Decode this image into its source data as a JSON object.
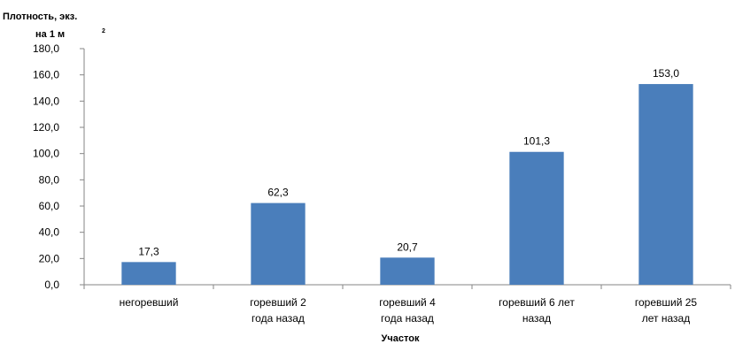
{
  "chart_data": {
    "type": "bar",
    "ylabel_line1": "Плотность, экз.",
    "ylabel_line2": "на 1 м",
    "ylabel_sup": "2",
    "xlabel": "Участок",
    "ylim": [
      0,
      180
    ],
    "yticks": [
      "0,0",
      "20,0",
      "40,0",
      "60,0",
      "80,0",
      "100,0",
      "120,0",
      "140,0",
      "160,0",
      "180,0"
    ],
    "categories": [
      [
        "негоревший"
      ],
      [
        "горевший 2",
        "года назад"
      ],
      [
        "горевший 4",
        "года назад"
      ],
      [
        "горевший 6 лет",
        "назад"
      ],
      [
        "горевший 25",
        "лет назад"
      ]
    ],
    "values": [
      17.3,
      62.3,
      20.7,
      101.3,
      153.0
    ],
    "value_labels": [
      "17,3",
      "62,3",
      "20,7",
      "101,3",
      "153,0"
    ],
    "bar_color": "#4a7ebb",
    "grid": false,
    "legend": "none"
  }
}
